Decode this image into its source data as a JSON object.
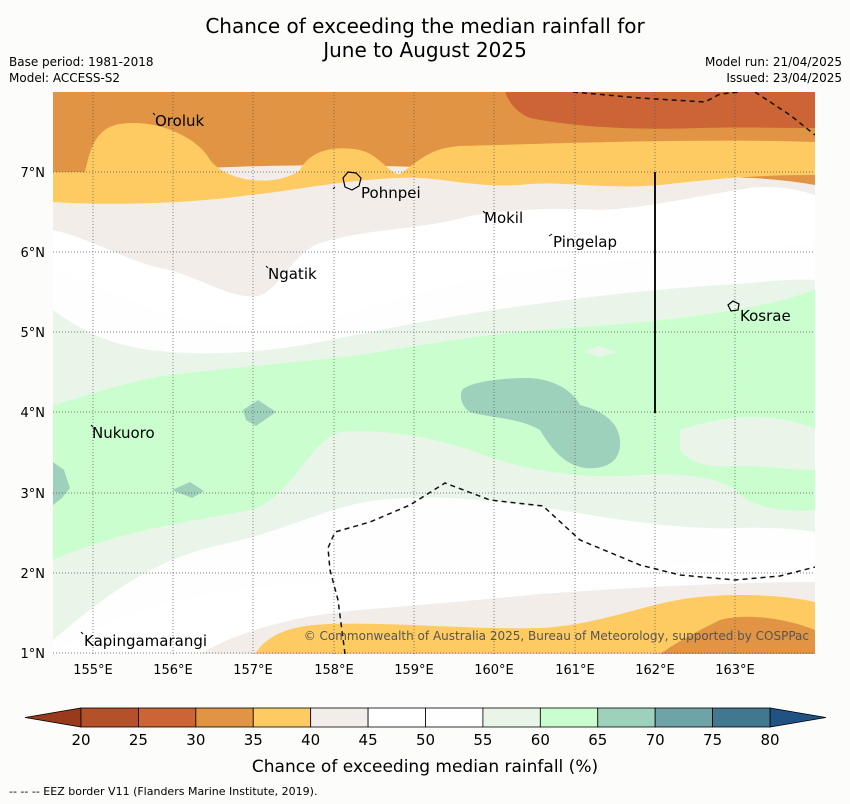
{
  "title_line1": "Chance of exceeding the median rainfall for",
  "title_line2": "June to August 2025",
  "meta": {
    "base_period": "Base period: 1981-2018",
    "model": "Model: ACCESS-S2",
    "model_run": "Model run: 21/04/2025",
    "issued": "Issued: 23/04/2025"
  },
  "axes": {
    "lon_ticks": [
      "155°E",
      "156°E",
      "157°E",
      "158°E",
      "159°E",
      "160°E",
      "161°E",
      "162°E",
      "163°E"
    ],
    "lat_ticks": [
      "7°N",
      "6°N",
      "5°N",
      "4°N",
      "3°N",
      "2°N",
      "1°N"
    ]
  },
  "places": [
    "Oroluk",
    "Pohnpei",
    "Mokil",
    "Pingelap",
    "Ngatik",
    "Kosrae",
    "Nukuoro",
    "Kapingamarangi"
  ],
  "copyright": "© Commonwealth of Australia 2025, Bureau of Meteorology, supported by COSPPac",
  "colorbar": {
    "label": "Chance of exceeding median rainfall (%)",
    "ticks": [
      "20",
      "25",
      "30",
      "35",
      "40",
      "45",
      "50",
      "55",
      "60",
      "65",
      "70",
      "75",
      "80"
    ],
    "colors": [
      "#b4502a",
      "#cc6435",
      "#e09444",
      "#fecb63",
      "#f2ede9",
      "#ffffff",
      "#fdfefd",
      "#eaf5ea",
      "#cafece",
      "#9ed1bb",
      "#6ea3a8",
      "#41788f"
    ],
    "under_color": "#9a3a1c",
    "over_color": "#205283"
  },
  "footnote": "--  --  -- EEZ border V11 (Flanders Marine Institute, 2019)."
}
